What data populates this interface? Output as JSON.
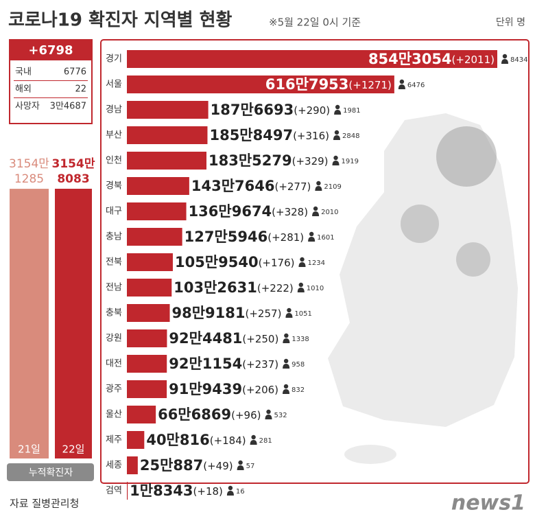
{
  "chart_data": {
    "type": "bar",
    "title": "코로나19 확진자 지역별 현황",
    "subtitle": "※5월 22일 0시 기준",
    "unit": "단위 명",
    "color": "#c0272d",
    "categories": [
      "경기",
      "서울",
      "경남",
      "부산",
      "인천",
      "경북",
      "대구",
      "충남",
      "전북",
      "전남",
      "충북",
      "강원",
      "대전",
      "광주",
      "울산",
      "제주",
      "세종",
      "검역"
    ],
    "values": [
      8543054,
      6167953,
      1876693,
      1858497,
      1835279,
      1437646,
      1369674,
      1275946,
      1059540,
      1032631,
      989181,
      924481,
      921154,
      919439,
      666869,
      400816,
      250887,
      18343
    ],
    "value_labels": [
      "854만3054",
      "616만7953",
      "187만6693",
      "185만8497",
      "183만5279",
      "143만7646",
      "136만9674",
      "127만5946",
      "105만9540",
      "103만2631",
      "98만9181",
      "92만4481",
      "92만1154",
      "91만9439",
      "66만6869",
      "40만816",
      "25만887",
      "1만8343"
    ],
    "new_cases": [
      2011,
      1271,
      290,
      316,
      329,
      277,
      328,
      281,
      176,
      222,
      257,
      250,
      237,
      206,
      96,
      184,
      49,
      18
    ],
    "new_case_labels": [
      "(+2011)",
      "(+1271)",
      "(+290)",
      "(+316)",
      "(+329)",
      "(+277)",
      "(+328)",
      "(+281)",
      "(+176)",
      "(+222)",
      "(+257)",
      "(+250)",
      "(+237)",
      "(+206)",
      "(+96)",
      "(+184)",
      "(+49)",
      "(+18)"
    ],
    "deaths": [
      8434,
      6476,
      1981,
      2848,
      1919,
      2109,
      2010,
      1601,
      1234,
      1010,
      1051,
      1338,
      958,
      832,
      532,
      281,
      57,
      16
    ]
  },
  "summary": {
    "total_new": {
      "value": 6798,
      "label": "+6798"
    },
    "rows": [
      {
        "name": "국내",
        "value": 6776
      },
      {
        "name": "해외",
        "value": 22
      },
      {
        "name": "사망자",
        "value": 34687,
        "label": "3만4687"
      }
    ]
  },
  "cumulative": {
    "type": "bar",
    "categories": [
      "21일",
      "22일"
    ],
    "values": [
      31541285,
      31548083
    ],
    "value_labels": [
      [
        "3154만",
        "1285"
      ],
      [
        "3154만",
        "8083"
      ]
    ],
    "colors": [
      "#d98b7c",
      "#c0272d"
    ],
    "caption": "누적확진자"
  },
  "source": "자료  질병관리청",
  "logo": "news1"
}
